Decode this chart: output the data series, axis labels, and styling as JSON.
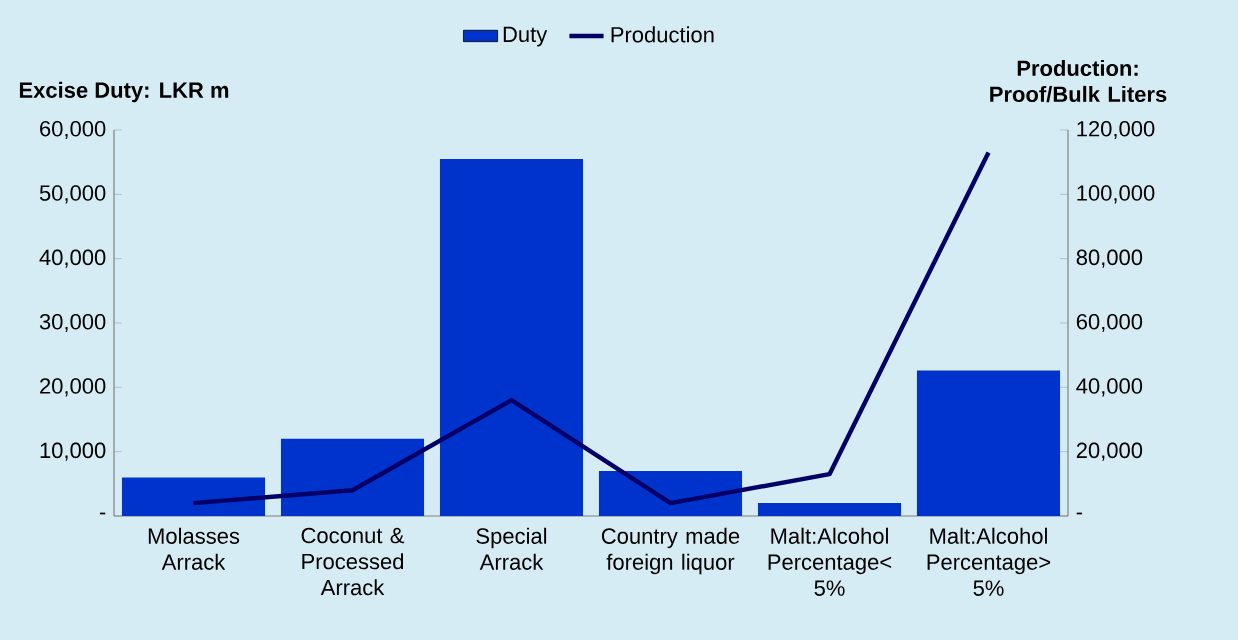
{
  "chart_data": {
    "type": "bar",
    "categories": [
      "Molasses Arrack",
      "Coconut & Processed Arrack",
      "Special Arrack",
      "Country made foreign liquor",
      "Malt:Alcohol Percentage< 5%",
      "Malt:Alcohol Percentage> 5%"
    ],
    "series": [
      {
        "name": "Duty",
        "color": "#0033cc",
        "values": [
          6000,
          12000,
          55500,
          7000,
          2000,
          22600
        ]
      },
      {
        "name": "Production",
        "type": "line",
        "axis": "y2",
        "color": "#000066",
        "values": [
          4000,
          8000,
          36000,
          4000,
          13000,
          113000
        ]
      }
    ],
    "ylabel": "Excise Duty: LKR m",
    "y2label": "Production: Proof/Bulk Liters",
    "ylim": [
      0,
      60000
    ],
    "yticks": [
      {
        "value": 0,
        "label": "-"
      },
      {
        "value": 10000,
        "label": "10,000"
      },
      {
        "value": 20000,
        "label": "20,000"
      },
      {
        "value": 30000,
        "label": "30,000"
      },
      {
        "value": 40000,
        "label": "40,000"
      },
      {
        "value": 50000,
        "label": "50,000"
      },
      {
        "value": 60000,
        "label": "60,000"
      }
    ],
    "y2lim": [
      0,
      120000
    ],
    "y2ticks": [
      {
        "value": 0,
        "label": "-"
      },
      {
        "value": 20000,
        "label": "20,000"
      },
      {
        "value": 40000,
        "label": "40,000"
      },
      {
        "value": 60000,
        "label": "60,000"
      },
      {
        "value": 80000,
        "label": "80,000"
      },
      {
        "value": 100000,
        "label": "100,000"
      },
      {
        "value": 120000,
        "label": "120,000"
      }
    ],
    "legend": "top"
  }
}
